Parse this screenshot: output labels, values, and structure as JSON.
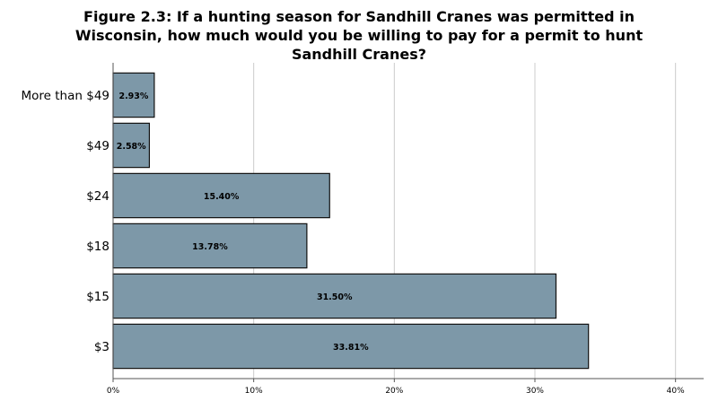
{
  "chart_data": {
    "type": "bar",
    "orientation": "horizontal",
    "title": "Figure 2.3: If a hunting season for Sandhill Cranes was permitted in Wisconsin, how much would you be willing to pay for a permit to hunt Sandhill Cranes?",
    "title_lines": [
      "Figure 2.3: If a hunting season for Sandhill Cranes was permitted in",
      "Wisconsin, how much would you be willing to pay for a permit to hunt",
      "Sandhill Cranes?"
    ],
    "categories": [
      "More than $49",
      "$49",
      "$24",
      "$18",
      "$15",
      "$3"
    ],
    "values": [
      2.93,
      2.58,
      15.4,
      13.78,
      31.5,
      33.81
    ],
    "value_labels": [
      "2.93%",
      "2.58%",
      "15.40%",
      "13.78%",
      "31.50%",
      "33.81%"
    ],
    "xlim": [
      0,
      42
    ],
    "xticks": [
      0,
      10,
      20,
      30,
      40
    ],
    "xtick_labels": [
      "0%",
      "10%",
      "20%",
      "30%",
      "40%"
    ],
    "xlabel": "",
    "ylabel": "",
    "grid": "vertical",
    "legend": "none",
    "colors": {
      "bar_fill": "#7d98a8",
      "bar_stroke": "#111111",
      "grid": "#cccccc",
      "axis": "#555555"
    }
  }
}
